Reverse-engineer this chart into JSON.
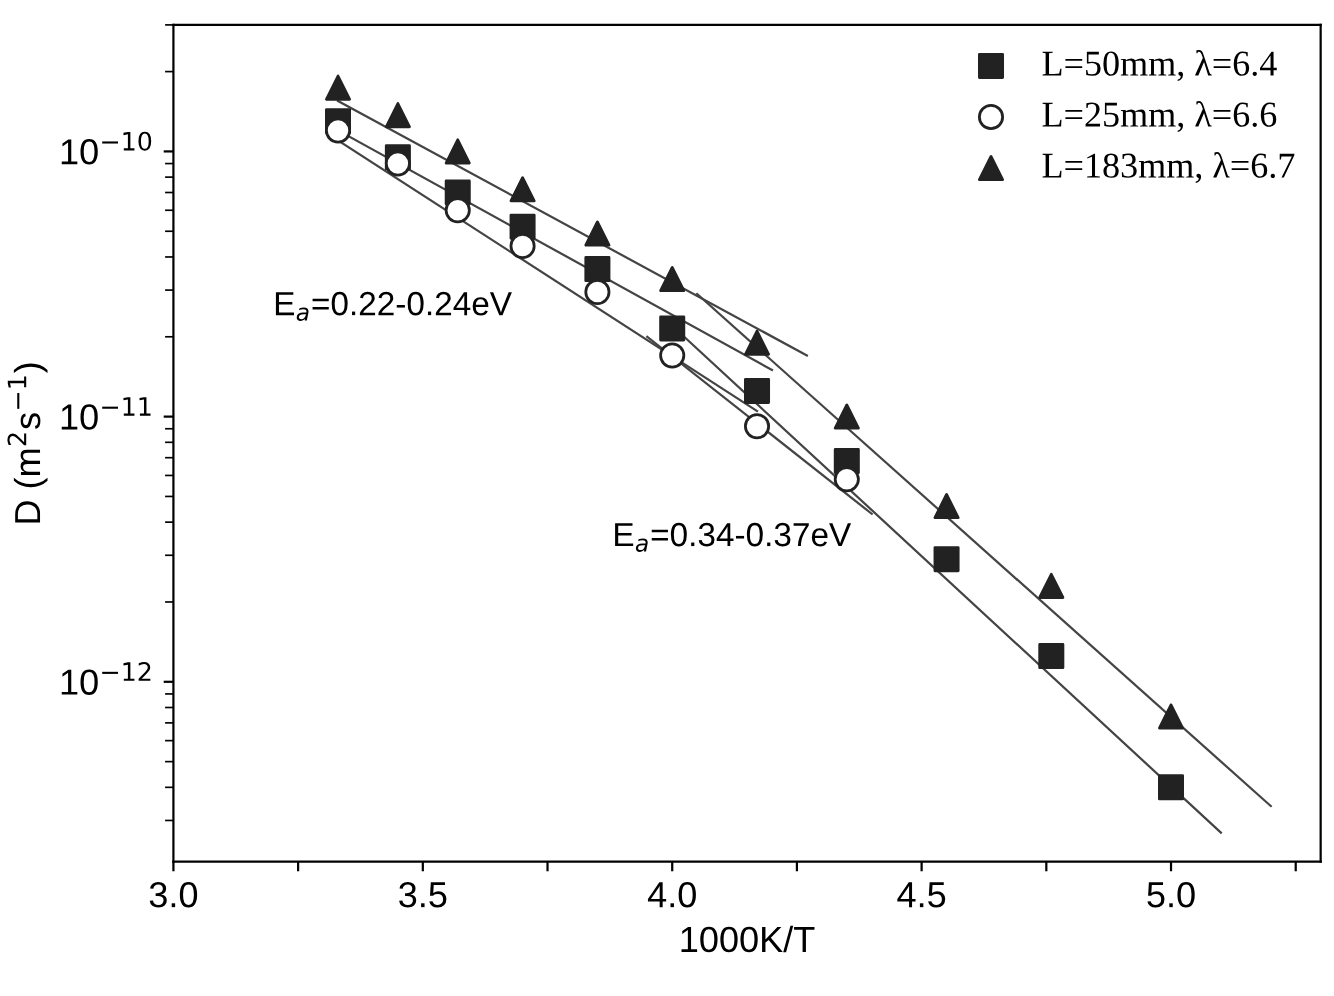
{
  "chart_data": {
    "type": "scatter",
    "xlabel": "1000K/T",
    "ylabel": "D (m$^{2}$s$^{−1}$)",
    "log": "y",
    "xlim": [
      3.0,
      5.3
    ],
    "ylim": [
      2.1e-13,
      3e-10
    ],
    "xticks": [
      {
        "value": 3.0,
        "label": "3.0"
      },
      {
        "value": 3.25,
        "label": null
      },
      {
        "value": 3.5,
        "label": "3.5"
      },
      {
        "value": 3.75,
        "label": null
      },
      {
        "value": 4.0,
        "label": "4.0"
      },
      {
        "value": 4.25,
        "label": null
      },
      {
        "value": 4.5,
        "label": "4.5"
      },
      {
        "value": 4.75,
        "label": null
      },
      {
        "value": 5.0,
        "label": "5.0"
      },
      {
        "value": 5.25,
        "label": null
      }
    ],
    "yticks": [
      {
        "value": 1e-12,
        "label": "10$^{−12}$"
      },
      {
        "value": 1e-11,
        "label": "10$^{−11}$"
      },
      {
        "value": 1e-10,
        "label": "10$^{−10}$"
      }
    ],
    "legend": "top right",
    "grid": false,
    "annotations": [
      "E$_{a}$=0.22-0.24eV",
      "E$_{a}$=0.34-0.37eV"
    ],
    "series": [
      {
        "name": "L=50mm, λ=6.4",
        "color": "#222222",
        "marker": "square",
        "x": [
          3.33,
          3.45,
          3.57,
          3.7,
          3.85,
          4.0,
          4.17,
          4.35,
          4.55,
          4.76,
          5.0
        ],
        "values": [
          1.3e-10,
          9.5e-11,
          7e-11,
          5.2e-11,
          3.6e-11,
          2.15e-11,
          1.25e-11,
          6.8e-12,
          2.9e-12,
          1.25e-12,
          4e-13
        ]
      },
      {
        "name": "L=25mm, λ=6.6",
        "color": "#222222",
        "marker": "circle",
        "x": [
          3.33,
          3.45,
          3.57,
          3.7,
          3.85,
          4.0,
          4.17,
          4.35
        ],
        "values": [
          1.2e-10,
          9e-11,
          6e-11,
          4.4e-11,
          2.95e-11,
          1.7e-11,
          9.2e-12,
          5.8e-12
        ]
      },
      {
        "name": "L=183mm, λ=6.7",
        "color": "#222222",
        "marker": "triangle",
        "x": [
          3.33,
          3.45,
          3.57,
          3.7,
          3.85,
          4.0,
          4.17,
          4.35,
          4.55,
          4.76,
          5.0
        ],
        "values": [
          1.74e-10,
          1.37e-10,
          1e-10,
          7.2e-11,
          4.9e-11,
          3.3e-11,
          1.9e-11,
          1e-11,
          4.6e-12,
          2.3e-12,
          7.4e-13
        ]
      },
      {
        "type": "line",
        "color": "#444444",
        "marker": "none",
        "x": [
          3.33,
          4.27
        ],
        "values": [
          1.55e-10,
          1.7e-11
        ]
      },
      {
        "type": "line",
        "color": "#444444",
        "marker": "none",
        "x": [
          3.33,
          4.2
        ],
        "values": [
          1.2e-10,
          1.5e-11
        ]
      },
      {
        "type": "line",
        "color": "#444444",
        "marker": "none",
        "x": [
          3.33,
          4.17
        ],
        "values": [
          1.1e-10,
          1.05e-11
        ]
      },
      {
        "type": "line",
        "color": "#444444",
        "marker": "none",
        "x": [
          4.05,
          5.2
        ],
        "values": [
          2.9e-11,
          3.4e-13
        ]
      },
      {
        "type": "line",
        "color": "#444444",
        "marker": "none",
        "x": [
          4.0,
          5.1
        ],
        "values": [
          2.2e-11,
          2.7e-13
        ]
      },
      {
        "type": "line",
        "color": "#444444",
        "marker": "none",
        "x": [
          3.95,
          4.4
        ],
        "values": [
          2e-11,
          4.3e-12
        ]
      }
    ]
  }
}
